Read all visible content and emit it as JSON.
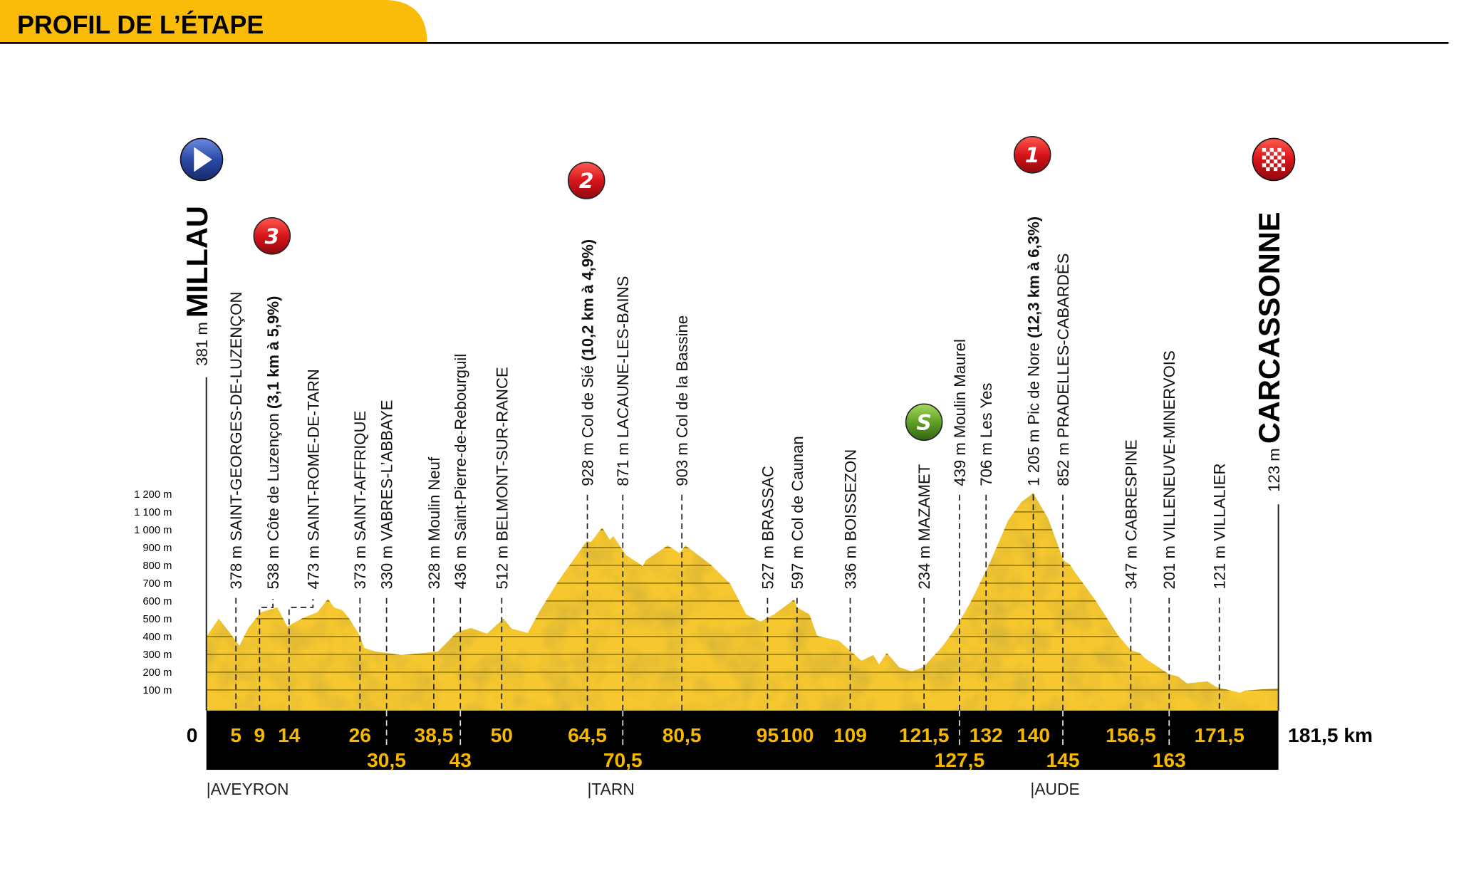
{
  "header": {
    "title": "PROFIL DE L’ÉTAPE",
    "accent_color": "#fbbb09"
  },
  "chart_data": {
    "type": "area",
    "title": "PROFIL DE L’ÉTAPE",
    "x_unit": "km",
    "y_ticks": [
      "100 m",
      "200 m",
      "300 m",
      "400 m",
      "500 m",
      "600 m",
      "700 m",
      "800 m",
      "900 m",
      "1 000 m",
      "1 100 m",
      "1 200 m"
    ],
    "y_tick_values": [
      100,
      200,
      300,
      400,
      500,
      600,
      700,
      800,
      900,
      1000,
      1100,
      1200
    ],
    "ylim": [
      0,
      1200
    ],
    "xlim": [
      0,
      181.5
    ],
    "grid": true,
    "fill_color": "#f6c72e",
    "profile": [
      [
        0,
        400
      ],
      [
        2.1,
        500
      ],
      [
        3.8,
        428
      ],
      [
        5.6,
        348
      ],
      [
        7.1,
        448
      ],
      [
        9.2,
        536
      ],
      [
        12,
        564
      ],
      [
        13.7,
        456
      ],
      [
        16.3,
        504
      ],
      [
        18.8,
        536
      ],
      [
        20.6,
        612
      ],
      [
        21.6,
        564
      ],
      [
        23,
        548
      ],
      [
        24.2,
        500
      ],
      [
        26,
        404
      ],
      [
        26.7,
        336
      ],
      [
        28.6,
        316
      ],
      [
        31.4,
        304
      ],
      [
        33,
        296
      ],
      [
        39.2,
        316
      ],
      [
        42.4,
        424
      ],
      [
        44.8,
        448
      ],
      [
        47.5,
        416
      ],
      [
        50.3,
        500
      ],
      [
        51.7,
        444
      ],
      [
        54.4,
        420
      ],
      [
        56.3,
        536
      ],
      [
        59.5,
        708
      ],
      [
        64.4,
        936
      ],
      [
        65.1,
        930
      ],
      [
        67,
        1012
      ],
      [
        68.3,
        944
      ],
      [
        68.9,
        964
      ],
      [
        71.1,
        856
      ],
      [
        73.9,
        796
      ],
      [
        74.4,
        828
      ],
      [
        78.1,
        912
      ],
      [
        80.1,
        868
      ],
      [
        81.1,
        912
      ],
      [
        85.4,
        804
      ],
      [
        88.7,
        696
      ],
      [
        91.4,
        524
      ],
      [
        93.8,
        484
      ],
      [
        96.1,
        524
      ],
      [
        99.5,
        608
      ],
      [
        100,
        564
      ],
      [
        102.1,
        524
      ],
      [
        103.4,
        404
      ],
      [
        107.1,
        376
      ],
      [
        110.9,
        264
      ],
      [
        112.9,
        296
      ],
      [
        113.9,
        244
      ],
      [
        115.2,
        308
      ],
      [
        117.3,
        228
      ],
      [
        119.4,
        204
      ],
      [
        121.4,
        228
      ],
      [
        124.7,
        348
      ],
      [
        127,
        456
      ],
      [
        129.3,
        588
      ],
      [
        132.5,
        804
      ],
      [
        135.8,
        1056
      ],
      [
        138,
        1156
      ],
      [
        140,
        1205
      ],
      [
        142.5,
        1064
      ],
      [
        145.1,
        828
      ],
      [
        146.2,
        804
      ],
      [
        147,
        764
      ],
      [
        150.5,
        604
      ],
      [
        154.4,
        404
      ],
      [
        156.5,
        324
      ],
      [
        158,
        308
      ],
      [
        159,
        276
      ],
      [
        163,
        188
      ],
      [
        164.5,
        176
      ],
      [
        166,
        136
      ],
      [
        169.5,
        148
      ],
      [
        171,
        116
      ],
      [
        175,
        84
      ],
      [
        175.8,
        96
      ],
      [
        181.5,
        110
      ]
    ],
    "start": {
      "km": 0,
      "alt": "381 m",
      "name": "MILLAU",
      "km_label": "0",
      "icon": "start-arrow-icon",
      "color": "#2a4aa8"
    },
    "finish": {
      "km": 181.5,
      "alt": "123 m",
      "name": "CARCASSONNE",
      "km_label": "181,5 km",
      "icon": "finish-checkered-icon",
      "color": "#d8141b"
    },
    "markers": [
      {
        "km": 5,
        "alt": "378 m",
        "name": "SAINT-GEORGES-DE-LUZENÇON"
      },
      {
        "km": 9,
        "alt": "538 m",
        "name": "Côte de Luzençon",
        "detail": "(3,1 km à 5,9%)",
        "climb": "3"
      },
      {
        "km": 14,
        "alt": "473 m",
        "name": "SAINT-ROME-DE-TARN"
      },
      {
        "km": 26,
        "alt": "373 m",
        "name": "SAINT-AFFRIQUE"
      },
      {
        "km": 30.5,
        "alt": "330 m",
        "name": "VABRES-L’ABBAYE"
      },
      {
        "km": 38.5,
        "alt": "328 m",
        "name": "Moulin Neuf"
      },
      {
        "km": 43,
        "alt": "436 m",
        "name": "Saint-Pierre-de-Rebourguil"
      },
      {
        "km": 50,
        "alt": "512 m",
        "name": "BELMONT-SUR-RANCE"
      },
      {
        "km": 64.5,
        "alt": "928 m",
        "name": "Col de Sié",
        "detail": "(10,2 km à 4,9%)",
        "climb": "2"
      },
      {
        "km": 70.5,
        "alt": "871 m",
        "name": "LACAUNE-LES-BAINS"
      },
      {
        "km": 80.5,
        "alt": "903 m",
        "name": "Col de la Bassine"
      },
      {
        "km": 95,
        "alt": "527 m",
        "name": "BRASSAC"
      },
      {
        "km": 100,
        "alt": "597 m",
        "name": "Col de Caunan"
      },
      {
        "km": 109,
        "alt": "336 m",
        "name": "BOISSEZON"
      },
      {
        "km": 121.5,
        "alt": "234 m",
        "name": "MAZAMET",
        "sprint": "S"
      },
      {
        "km": 127.5,
        "alt": "439 m",
        "name": "Moulin Maurel"
      },
      {
        "km": 132,
        "alt": "706 m",
        "name": "Les Yes"
      },
      {
        "km": 140,
        "alt": "1 205 m",
        "name": "Pic de Nore",
        "detail": "(12,3 km à 6,3%)",
        "climb": "1"
      },
      {
        "km": 145,
        "alt": "852 m",
        "name": "PRADELLES-CABARDÈS"
      },
      {
        "km": 156.5,
        "alt": "347 m",
        "name": "CABRESPINE"
      },
      {
        "km": 163,
        "alt": "201 m",
        "name": "VILLENEUVE-MINERVOIS"
      },
      {
        "km": 171.5,
        "alt": "121 m",
        "name": "VILLALIER"
      }
    ],
    "km_labels": [
      {
        "km": 5,
        "label": "5",
        "row": 1
      },
      {
        "km": 9,
        "label": "9",
        "row": 1
      },
      {
        "km": 14,
        "label": "14",
        "row": 1
      },
      {
        "km": 26,
        "label": "26",
        "row": 1
      },
      {
        "km": 30.5,
        "label": "30,5",
        "row": 2
      },
      {
        "km": 38.5,
        "label": "38,5",
        "row": 1
      },
      {
        "km": 43,
        "label": "43",
        "row": 2
      },
      {
        "km": 50,
        "label": "50",
        "row": 1
      },
      {
        "km": 64.5,
        "label": "64,5",
        "row": 1
      },
      {
        "km": 70.5,
        "label": "70,5",
        "row": 2
      },
      {
        "km": 80.5,
        "label": "80,5",
        "row": 1
      },
      {
        "km": 95,
        "label": "95",
        "row": 1
      },
      {
        "km": 100,
        "label": "100",
        "row": 1
      },
      {
        "km": 109,
        "label": "109",
        "row": 1
      },
      {
        "km": 121.5,
        "label": "121,5",
        "row": 1
      },
      {
        "km": 127.5,
        "label": "127,5",
        "row": 2
      },
      {
        "km": 132,
        "label": "132",
        "row": 1
      },
      {
        "km": 140,
        "label": "140",
        "row": 1
      },
      {
        "km": 145,
        "label": "145",
        "row": 2
      },
      {
        "km": 156.5,
        "label": "156,5",
        "row": 1
      },
      {
        "km": 163,
        "label": "163",
        "row": 2
      },
      {
        "km": 171.5,
        "label": "171,5",
        "row": 1
      }
    ],
    "regions": [
      {
        "km": 0,
        "label": "|AVEYRON"
      },
      {
        "km": 64.5,
        "label": "|TARN"
      },
      {
        "km": 139.5,
        "label": "|AUDE"
      }
    ],
    "climb_color": "#d8141b",
    "sprint_color": "#5fa025"
  }
}
